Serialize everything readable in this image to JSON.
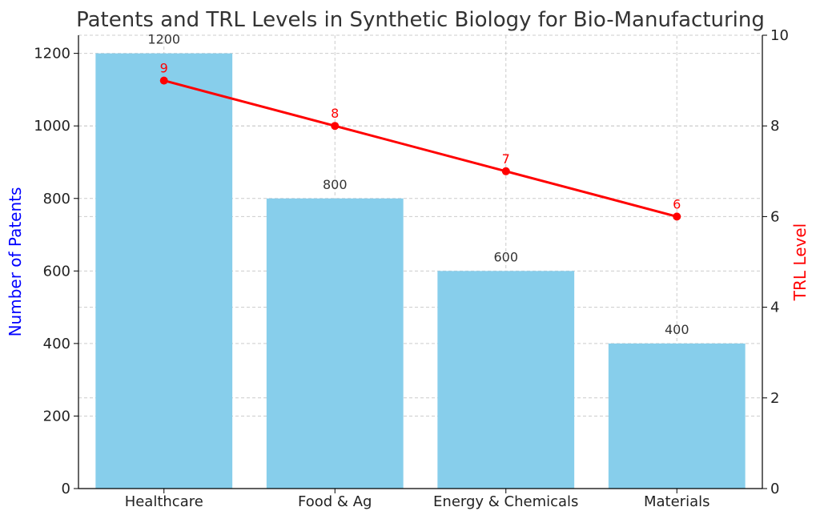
{
  "chart_data": {
    "type": "bar",
    "title": "Patents and TRL Levels in Synthetic Biology for Bio-Manufacturing",
    "categories": [
      "Healthcare",
      "Food & Ag",
      "Energy & Chemicals",
      "Materials"
    ],
    "series": [
      {
        "name": "Number of Patents",
        "type": "bar",
        "axis": "left",
        "values": [
          1200,
          800,
          600,
          400
        ],
        "color": "#87CEEB"
      },
      {
        "name": "TRL Level",
        "type": "line",
        "axis": "right",
        "values": [
          9,
          8,
          7,
          6
        ],
        "color": "#FF0000"
      }
    ],
    "ylabel": "Number of Patents",
    "ylabel_color": "#0000FF",
    "y2label": "TRL Level",
    "y2label_color": "#FF0000",
    "ylim": [
      0,
      1250
    ],
    "y2lim": [
      0,
      10
    ],
    "yticks": [
      0,
      200,
      400,
      600,
      800,
      1000,
      1200
    ],
    "y2ticks": [
      0,
      2,
      4,
      6,
      8,
      10
    ],
    "grid": true,
    "legend": "none"
  }
}
